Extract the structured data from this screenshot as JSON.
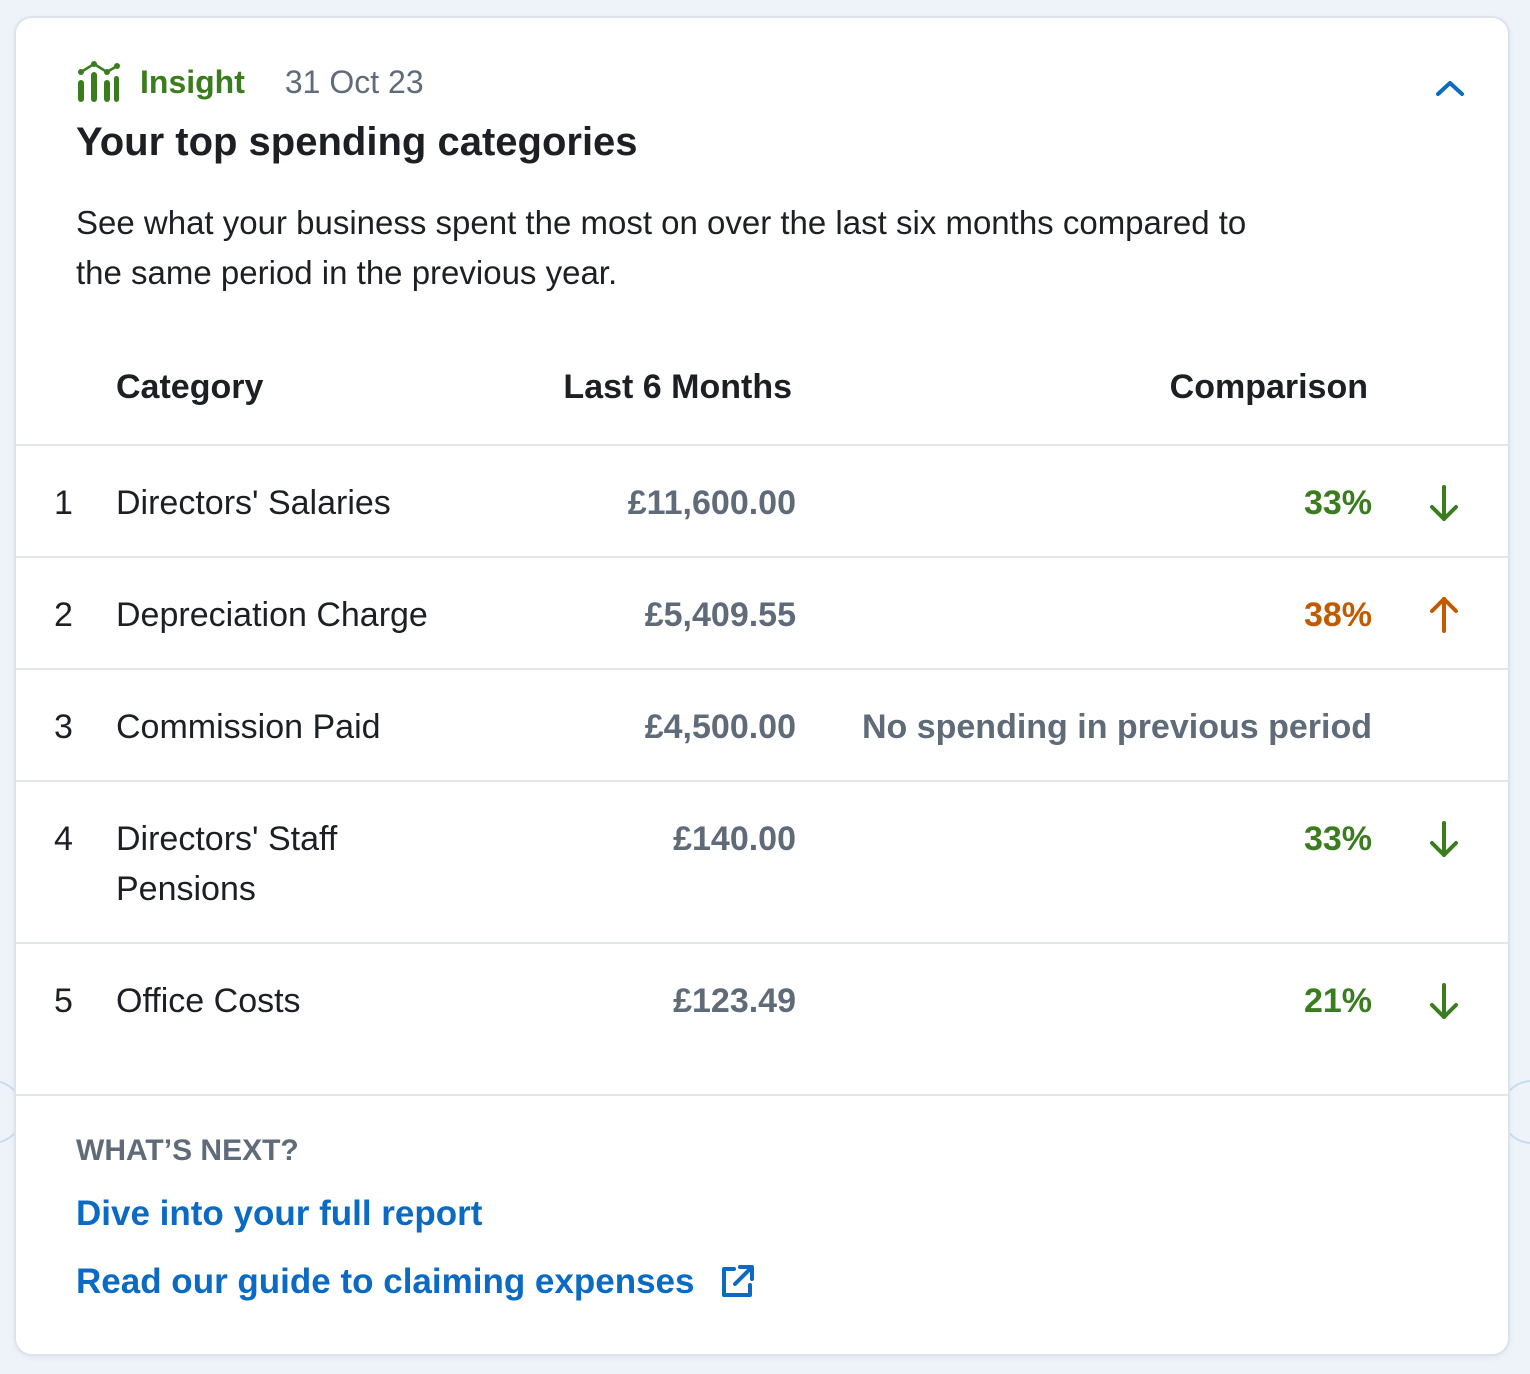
{
  "insight": {
    "label": "Insight",
    "date": "31 Oct 23",
    "title": "Your top spending categories",
    "description": "See what your business spent the most on over the last six months compared to the same period in the previous year."
  },
  "table": {
    "headers": {
      "category": "Category",
      "amount": "Last 6 Months",
      "comparison": "Comparison"
    },
    "rows": [
      {
        "rank": "1",
        "category": "Directors' Salaries",
        "amount": "£11,600.00",
        "comparison": "33%",
        "trend": "down"
      },
      {
        "rank": "2",
        "category": "Depreciation Charge",
        "amount": "£5,409.55",
        "comparison": "38%",
        "trend": "up"
      },
      {
        "rank": "3",
        "category": "Commission Paid",
        "amount": "£4,500.00",
        "comparison": "No spending in previous period",
        "trend": "none"
      },
      {
        "rank": "4",
        "category": "Directors' Staff Pensions",
        "amount": "£140.00",
        "comparison": "33%",
        "trend": "down"
      },
      {
        "rank": "5",
        "category": "Office Costs",
        "amount": "£123.49",
        "comparison": "21%",
        "trend": "down"
      }
    ]
  },
  "footer": {
    "heading": "WHAT’S NEXT?",
    "report_link": "Dive into your full report",
    "guide_link": "Read our guide to claiming expenses"
  },
  "colors": {
    "accent_green": "#3a7d1e",
    "accent_orange": "#c25a00",
    "link_blue": "#0b6bc4",
    "muted": "#5f6b78"
  },
  "icons": {
    "insight": "bar-chart-icon",
    "collapse": "chevron-up-icon",
    "down": "arrow-down-icon",
    "up": "arrow-up-icon",
    "external": "external-link-icon"
  }
}
